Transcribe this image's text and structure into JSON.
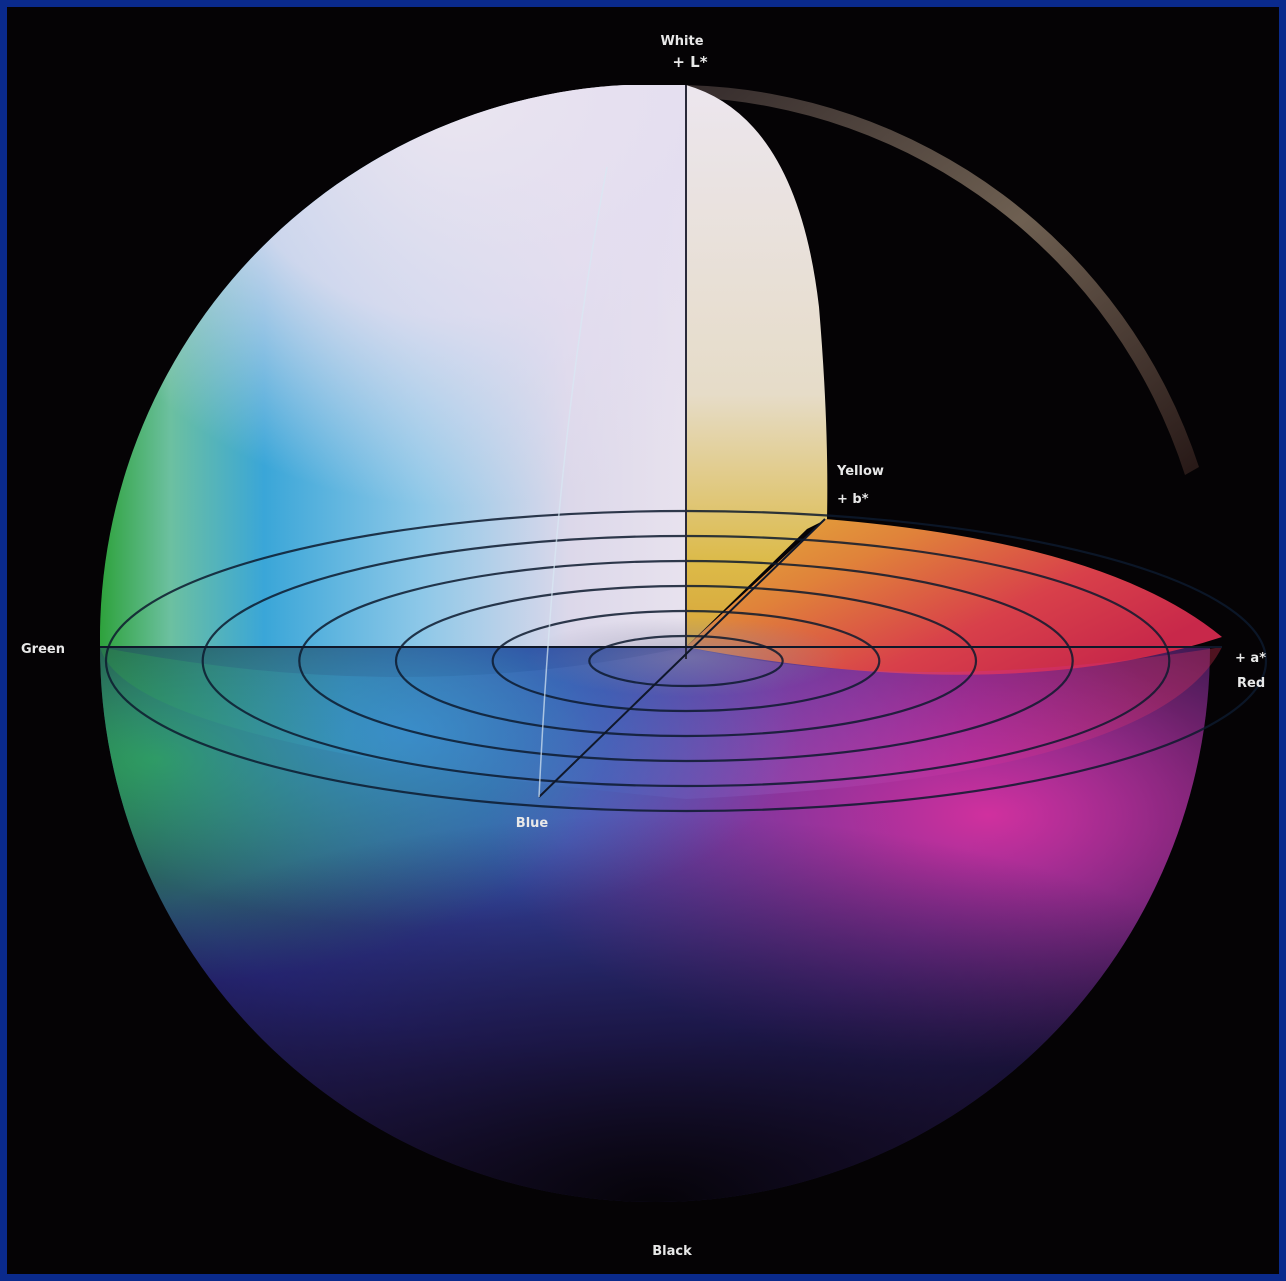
{
  "labels": {
    "white": "White",
    "plus_l": "+ L*",
    "yellow": "Yellow",
    "plus_b": "+ b*",
    "green": "Green",
    "plus_a": "+ a*",
    "red": "Red",
    "blue": "Blue",
    "black": "Black"
  },
  "colors": {
    "frame": "#0a2a8c",
    "background": "#050305",
    "white_region": "#e6e0ec",
    "cyan_region": "#3aa6d8",
    "green_region": "#2ea23c",
    "blue_region": "#2f3ea0",
    "magenta_region": "#c8289e",
    "red_region": "#d8305a",
    "yellow_region": "#e2b43a",
    "orange_region": "#e0783c",
    "gridline": "#0d1a2e"
  },
  "rings": [
    1,
    2,
    3,
    4,
    5,
    6
  ]
}
